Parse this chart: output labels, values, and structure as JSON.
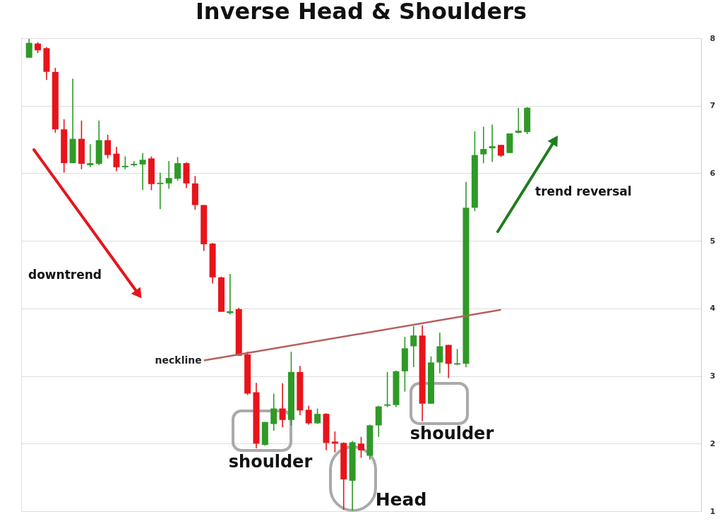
{
  "chart_data": {
    "type": "candlestick",
    "title": "Inverse Head & Shoulders",
    "categories": [
      null,
      null,
      null,
      null,
      null,
      null,
      null,
      null,
      null,
      null,
      null,
      null,
      null,
      null,
      null,
      null,
      null,
      null,
      null,
      null,
      null,
      null,
      null,
      null,
      null,
      null,
      null,
      null,
      null,
      null,
      null,
      null,
      null,
      null,
      null,
      null,
      null,
      null,
      null,
      null,
      null,
      null,
      null,
      null,
      null,
      null,
      null,
      null,
      null,
      null,
      null,
      null,
      null,
      null,
      null,
      null,
      null,
      null,
      null,
      null,
      null,
      null,
      null,
      null,
      null,
      null,
      null,
      null,
      null,
      null,
      null,
      null,
      null,
      null,
      null,
      null,
      null
    ],
    "ohlc": [
      [
        7.71,
        7.99,
        7.71,
        7.93
      ],
      [
        7.92,
        7.94,
        7.78,
        7.82
      ],
      [
        7.85,
        7.87,
        7.38,
        7.5
      ],
      [
        7.5,
        7.56,
        6.6,
        6.65
      ],
      [
        6.65,
        6.8,
        6.01,
        6.15
      ],
      [
        6.15,
        7.4,
        6.15,
        6.51
      ],
      [
        6.51,
        6.78,
        6.06,
        6.14
      ],
      [
        6.12,
        6.43,
        6.09,
        6.15
      ],
      [
        6.14,
        6.78,
        6.12,
        6.49
      ],
      [
        6.49,
        6.57,
        6.22,
        6.27
      ],
      [
        6.29,
        6.39,
        6.03,
        6.09
      ],
      [
        6.09,
        6.25,
        6.06,
        6.11
      ],
      [
        6.12,
        6.18,
        6.1,
        6.14
      ],
      [
        6.13,
        6.3,
        5.75,
        6.2
      ],
      [
        6.22,
        6.25,
        5.75,
        5.84
      ],
      [
        5.84,
        6.01,
        5.47,
        5.86
      ],
      [
        5.85,
        6.18,
        5.77,
        5.93
      ],
      [
        5.92,
        6.24,
        5.89,
        6.15
      ],
      [
        6.15,
        6.16,
        5.78,
        5.85
      ],
      [
        5.85,
        5.96,
        5.46,
        5.53
      ],
      [
        5.53,
        5.53,
        4.85,
        4.95
      ],
      [
        4.96,
        4.97,
        4.37,
        4.46
      ],
      [
        4.46,
        4.47,
        3.95,
        3.95
      ],
      [
        3.93,
        4.51,
        3.91,
        3.96
      ],
      [
        3.99,
        4.01,
        3.3,
        3.3
      ],
      [
        3.32,
        3.36,
        2.72,
        2.74
      ],
      [
        2.76,
        2.9,
        1.93,
        2.0
      ],
      [
        1.98,
        2.32,
        1.97,
        2.32
      ],
      [
        2.29,
        2.74,
        2.19,
        2.52
      ],
      [
        2.52,
        2.89,
        2.24,
        2.35
      ],
      [
        2.35,
        3.36,
        2.27,
        3.06
      ],
      [
        3.06,
        3.15,
        2.42,
        2.49
      ],
      [
        2.5,
        2.56,
        2.28,
        2.3
      ],
      [
        2.3,
        2.52,
        2.29,
        2.44
      ],
      [
        2.44,
        2.45,
        1.9,
        2.01
      ],
      [
        2.03,
        2.18,
        1.87,
        2.0
      ],
      [
        2.01,
        2.02,
        1.02,
        1.47
      ],
      [
        1.45,
        2.04,
        1.01,
        2.02
      ],
      [
        2.0,
        2.1,
        1.79,
        1.9
      ],
      [
        1.82,
        2.28,
        1.76,
        2.27
      ],
      [
        2.27,
        2.56,
        2.1,
        2.55
      ],
      [
        2.56,
        3.06,
        2.54,
        2.58
      ],
      [
        2.57,
        3.08,
        2.54,
        3.07
      ],
      [
        3.07,
        3.58,
        2.77,
        3.41
      ],
      [
        3.44,
        3.74,
        3.13,
        3.6
      ],
      [
        3.6,
        3.75,
        2.33,
        2.59
      ],
      [
        2.59,
        3.29,
        2.59,
        3.2
      ],
      [
        3.2,
        3.64,
        3.04,
        3.44
      ],
      [
        3.46,
        3.46,
        2.97,
        3.18
      ],
      [
        3.17,
        3.4,
        3.16,
        3.19
      ],
      [
        3.18,
        5.87,
        3.13,
        5.49
      ],
      [
        5.49,
        6.62,
        5.44,
        6.27
      ],
      [
        6.28,
        6.69,
        6.15,
        6.36
      ],
      [
        6.37,
        6.72,
        6.17,
        6.4
      ],
      [
        6.42,
        6.42,
        6.24,
        6.26
      ],
      [
        6.3,
        6.59,
        6.3,
        6.59
      ],
      [
        6.6,
        6.97,
        6.59,
        6.63
      ],
      [
        6.61,
        6.98,
        6.58,
        6.97
      ],
      null,
      null,
      null,
      null,
      null,
      null,
      null,
      null,
      null,
      null,
      null,
      null,
      null,
      null,
      null,
      null,
      null,
      null,
      null
    ],
    "colors": [
      "#2f9a27",
      "#e8141b",
      "#e8141b",
      "#e8141b",
      "#e8141b",
      "#2f9a27",
      "#e8141b",
      "#2f9a27",
      "#2f9a27",
      "#e8141b",
      "#e8141b",
      "#2f9a27",
      "#2f9a27",
      "#2f9a27",
      "#e8141b",
      "#2f9a27",
      "#2f9a27",
      "#2f9a27",
      "#e8141b",
      "#e8141b",
      "#e8141b",
      "#e8141b",
      "#e8141b",
      "#2f9a27",
      "#e8141b",
      "#e8141b",
      "#e8141b",
      "#2f9a27",
      "#2f9a27",
      "#e8141b",
      "#2f9a27",
      "#e8141b",
      "#e8141b",
      "#2f9a27",
      "#e8141b",
      "#e8141b",
      "#e8141b",
      "#2f9a27",
      "#e8141b",
      "#2f9a27",
      "#2f9a27",
      "#2f9a27",
      "#2f9a27",
      "#2f9a27",
      "#2f9a27",
      "#e8141b",
      "#2f9a27",
      "#2f9a27",
      "#e8141b",
      "#2f9a27",
      "#2f9a27",
      "#2f9a27",
      "#2f9a27",
      "#2f9a27",
      "#e8141b",
      "#2f9a27",
      "#2f9a27",
      "#2f9a27",
      null,
      null,
      null,
      null,
      null,
      null,
      null,
      null,
      null,
      null,
      null,
      null,
      null,
      null,
      null,
      null,
      null,
      null,
      null
    ],
    "series": [
      {
        "name": "neckline",
        "type": "line",
        "color": "#b5615f",
        "values": [
          null,
          null,
          null,
          null,
          null,
          null,
          null,
          null,
          null,
          null,
          null,
          null,
          null,
          null,
          null,
          null,
          null,
          null,
          null,
          null,
          3.23,
          null,
          null,
          null,
          null,
          null,
          null,
          null,
          null,
          null,
          null,
          null,
          null,
          null,
          null,
          null,
          null,
          null,
          null,
          null,
          null,
          null,
          null,
          null,
          null,
          null,
          null,
          null,
          null,
          null,
          null,
          null,
          null,
          null,
          3.98,
          null,
          null,
          null,
          null,
          null,
          null,
          null,
          null,
          null,
          null,
          null,
          null,
          null,
          null,
          null,
          null,
          null,
          null,
          null,
          null,
          null,
          null
        ]
      }
    ],
    "ylim": [
      1,
      8
    ],
    "yticks": [
      1,
      2,
      3,
      4,
      5,
      6,
      7,
      8
    ],
    "grid": "y",
    "annotations": [
      "downtrend",
      "trend reversal",
      "shoulder",
      "shoulder",
      "Head"
    ]
  }
}
